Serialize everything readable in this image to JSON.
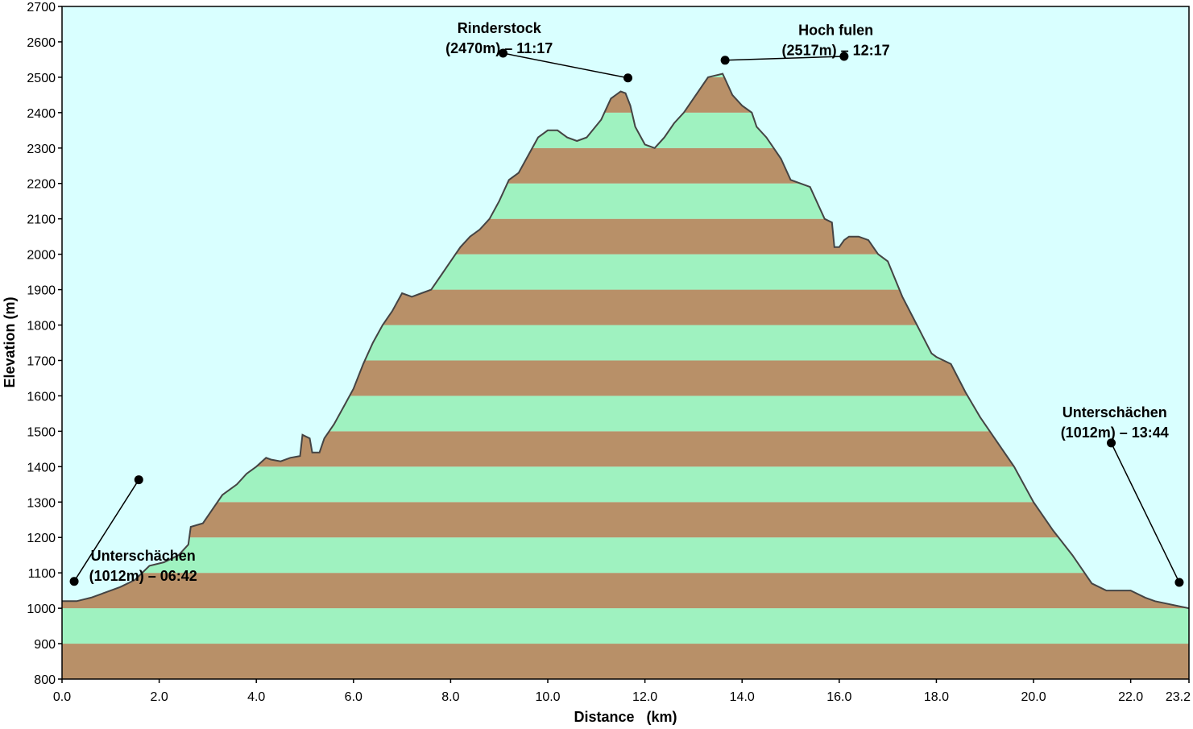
{
  "chart_data": {
    "type": "area",
    "xlabel": "Distance   (km)",
    "ylabel": "Elevation (m)",
    "xlim": [
      0,
      23.2
    ],
    "ylim": [
      800,
      2700
    ],
    "x_ticks": [
      0,
      2,
      4,
      6,
      8,
      10,
      12,
      14,
      16,
      18,
      20,
      22,
      23.2
    ],
    "x_tick_labels": [
      "0.0",
      "2.0",
      "4.0",
      "6.0",
      "8.0",
      "10.0",
      "12.0",
      "14.0",
      "16.0",
      "18.0",
      "20.0",
      "22.0",
      "23.2"
    ],
    "y_ticks": [
      800,
      900,
      1000,
      1100,
      1200,
      1300,
      1400,
      1500,
      1600,
      1700,
      1800,
      1900,
      2000,
      2100,
      2200,
      2300,
      2400,
      2500,
      2600,
      2700
    ],
    "y_tick_labels": [
      "800",
      "900",
      "1000",
      "1100",
      "1200",
      "1300",
      "1400",
      "1500",
      "1600",
      "1700",
      "1800",
      "1900",
      "2000",
      "2100",
      "2200",
      "2300",
      "2400",
      "2500",
      "2600",
      "2700"
    ],
    "band_step": 100,
    "colors": {
      "sky": "#d9ffff",
      "band_light": "#9ff2c0",
      "band_dark": "#b89068",
      "profile_line": "#444444",
      "frame": "#000000",
      "marker": "#000000"
    },
    "profile": {
      "x": [
        0,
        0.3,
        0.6,
        0.9,
        1.2,
        1.5,
        1.8,
        2.1,
        2.4,
        2.6,
        2.65,
        2.9,
        3.1,
        3.3,
        3.4,
        3.6,
        3.8,
        4.0,
        4.2,
        4.3,
        4.5,
        4.7,
        4.9,
        4.95,
        5.1,
        5.15,
        5.3,
        5.4,
        5.6,
        5.8,
        6.0,
        6.2,
        6.4,
        6.6,
        6.8,
        7.0,
        7.2,
        7.4,
        7.6,
        7.8,
        8.0,
        8.2,
        8.4,
        8.6,
        8.8,
        9.0,
        9.2,
        9.4,
        9.6,
        9.8,
        10.0,
        10.2,
        10.4,
        10.6,
        10.8,
        11.1,
        11.3,
        11.5,
        11.6,
        11.7,
        11.8,
        12.0,
        12.2,
        12.4,
        12.6,
        12.8,
        13.0,
        13.3,
        13.6,
        13.8,
        14.0,
        14.2,
        14.3,
        14.5,
        14.8,
        15.0,
        15.4,
        15.7,
        15.85,
        15.9,
        16.0,
        16.1,
        16.2,
        16.4,
        16.6,
        16.8,
        17.0,
        17.3,
        17.6,
        17.9,
        18.0,
        18.3,
        18.6,
        18.9,
        19.2,
        19.6,
        20.0,
        20.4,
        20.8,
        21.2,
        21.5,
        21.7,
        22.0,
        22.3,
        22.5,
        23.2
      ],
      "y": [
        1020,
        1020,
        1030,
        1045,
        1060,
        1080,
        1120,
        1130,
        1150,
        1180,
        1230,
        1240,
        1280,
        1320,
        1330,
        1350,
        1380,
        1400,
        1425,
        1420,
        1415,
        1425,
        1430,
        1490,
        1480,
        1440,
        1440,
        1480,
        1520,
        1570,
        1620,
        1690,
        1750,
        1800,
        1840,
        1890,
        1880,
        1890,
        1900,
        1940,
        1980,
        2020,
        2050,
        2070,
        2100,
        2150,
        2210,
        2230,
        2280,
        2330,
        2350,
        2350,
        2330,
        2320,
        2330,
        2380,
        2440,
        2460,
        2455,
        2420,
        2360,
        2310,
        2300,
        2330,
        2370,
        2400,
        2440,
        2500,
        2510,
        2450,
        2420,
        2400,
        2360,
        2330,
        2270,
        2210,
        2190,
        2100,
        2090,
        2020,
        2020,
        2040,
        2050,
        2050,
        2040,
        2000,
        1980,
        1880,
        1800,
        1720,
        1710,
        1690,
        1610,
        1540,
        1480,
        1400,
        1300,
        1220,
        1150,
        1070,
        1050,
        1050,
        1050,
        1030,
        1020,
        1000
      ]
    },
    "annotations": [
      {
        "line1": "Unterschächen",
        "line2": "(1012m) – 06:42",
        "label_at": [
          1.67,
          1135
        ],
        "dot_start": [
          1.58,
          1363
        ],
        "dot_end": [
          0.25,
          1076
        ]
      },
      {
        "line1": "Rinderstock",
        "line2": "(2470m) – 11:17",
        "label_at": [
          9.0,
          2625
        ],
        "dot_start": [
          9.08,
          2568
        ],
        "dot_end": [
          11.65,
          2498
        ]
      },
      {
        "line1": "Hoch fulen",
        "line2": "(2517m) – 12:17",
        "label_at": [
          15.93,
          2619
        ],
        "dot_start": [
          16.1,
          2559
        ],
        "dot_end": [
          13.65,
          2548
        ]
      },
      {
        "line1": "Unterschächen",
        "line2": "(1012m) – 13:44",
        "label_at": [
          21.67,
          1540
        ],
        "dot_start": [
          21.6,
          1467
        ],
        "dot_end": [
          23.0,
          1073
        ]
      }
    ]
  }
}
